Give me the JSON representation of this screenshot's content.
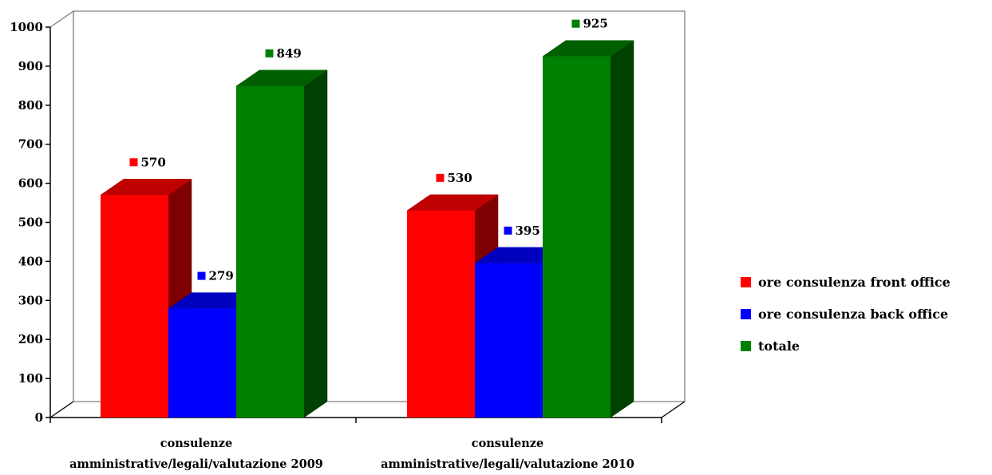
{
  "chart_data": {
    "type": "bar",
    "style": "3d-clustered-column",
    "categories": [
      [
        "consulenze",
        "amministrative/legali/valutazione 2009"
      ],
      [
        "consulenze",
        "amministrative/legali/valutazione 2010"
      ]
    ],
    "series": [
      {
        "name": "ore consulenza front office",
        "values": [
          570,
          530
        ],
        "color": "#ff0000",
        "side_color": "#7f0000",
        "top_color": "#bf0000"
      },
      {
        "name": "ore consulenza back office",
        "values": [
          279,
          395
        ],
        "color": "#0000ff",
        "side_color": "#00007f",
        "top_color": "#0000bf"
      },
      {
        "name": "totale",
        "values": [
          849,
          925
        ],
        "color": "#008000",
        "side_color": "#004000",
        "top_color": "#006000"
      }
    ],
    "ylim": [
      0,
      1000
    ],
    "yticks": [
      "0",
      "100",
      "200",
      "300",
      "400",
      "500",
      "600",
      "700",
      "800",
      "900",
      "1000"
    ],
    "legend_position": "right",
    "data_labels": true,
    "grid": false
  }
}
